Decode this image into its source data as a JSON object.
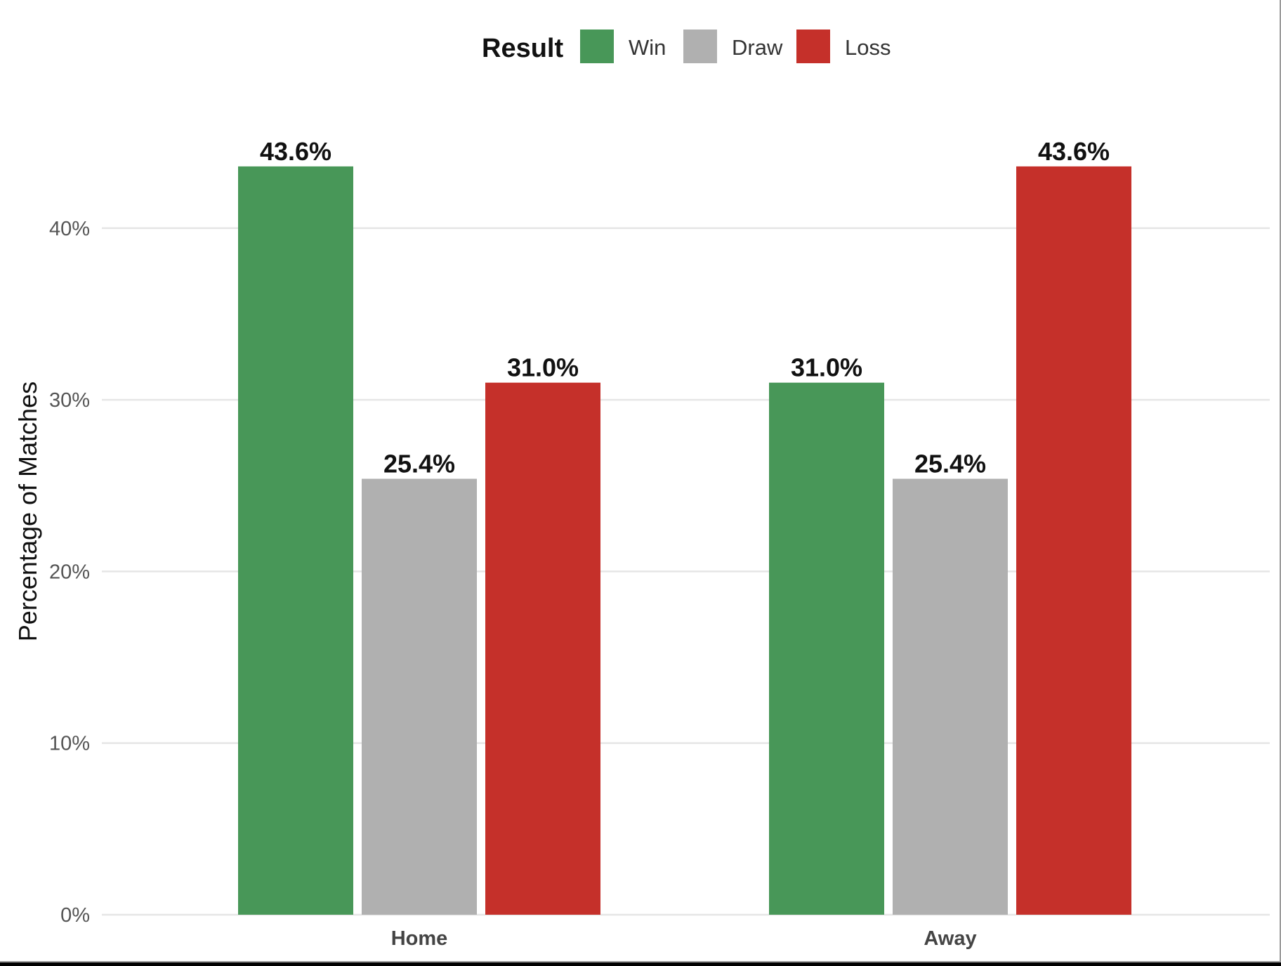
{
  "chart_data": {
    "type": "bar",
    "categories": [
      "Home",
      "Away"
    ],
    "series": [
      {
        "name": "Win",
        "color": "#489758",
        "values": [
          43.6,
          31.0
        ],
        "labels": [
          "43.6%",
          "31.0%"
        ]
      },
      {
        "name": "Draw",
        "color": "#b0b0b0",
        "values": [
          25.4,
          25.4
        ],
        "labels": [
          "25.4%",
          "25.4%"
        ]
      },
      {
        "name": "Loss",
        "color": "#c5302a",
        "values": [
          31.0,
          43.6
        ],
        "labels": [
          "31.0%",
          "43.6%"
        ]
      }
    ],
    "legend_title": "Result",
    "legend_position": "top",
    "xlabel": "",
    "ylabel": "Percentage of Matches",
    "ylim": [
      0,
      45
    ],
    "yticks": [
      0,
      10,
      20,
      30,
      40
    ],
    "ytick_labels": [
      "0%",
      "10%",
      "20%",
      "30%",
      "40%"
    ],
    "grid": true
  }
}
